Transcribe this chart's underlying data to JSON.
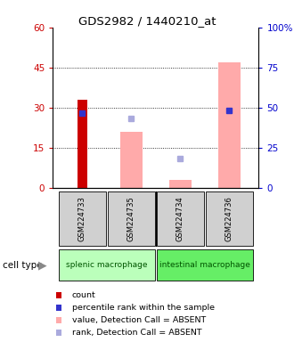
{
  "title": "GDS2982 / 1440210_at",
  "samples": [
    "GSM224733",
    "GSM224735",
    "GSM224734",
    "GSM224736"
  ],
  "count_values": [
    33,
    0,
    0,
    0
  ],
  "count_color": "#cc0000",
  "pink_bar_values": [
    0,
    21,
    3,
    47
  ],
  "pink_bar_color": "#ffaaaa",
  "blue_square_values": [
    28,
    0,
    0,
    29
  ],
  "blue_square_color": "#3333cc",
  "light_blue_square_values": [
    0,
    26,
    11,
    0
  ],
  "light_blue_square_color": "#aaaadd",
  "ylim_left": [
    0,
    60
  ],
  "ylim_right": [
    0,
    100
  ],
  "yticks_left": [
    0,
    15,
    30,
    45,
    60
  ],
  "yticks_right": [
    0,
    25,
    50,
    75,
    100
  ],
  "ytick_labels_right": [
    "0",
    "25",
    "50",
    "75",
    "100%"
  ],
  "left_axis_color": "#cc0000",
  "right_axis_color": "#0000cc",
  "splenic_color": "#bbffbb",
  "intestinal_color": "#66ee66",
  "sample_box_color": "#d0d0d0",
  "legend_items": [
    {
      "label": "count",
      "color": "#cc0000"
    },
    {
      "label": "percentile rank within the sample",
      "color": "#3333cc"
    },
    {
      "label": "value, Detection Call = ABSENT",
      "color": "#ffaaaa"
    },
    {
      "label": "rank, Detection Call = ABSENT",
      "color": "#aaaadd"
    }
  ]
}
